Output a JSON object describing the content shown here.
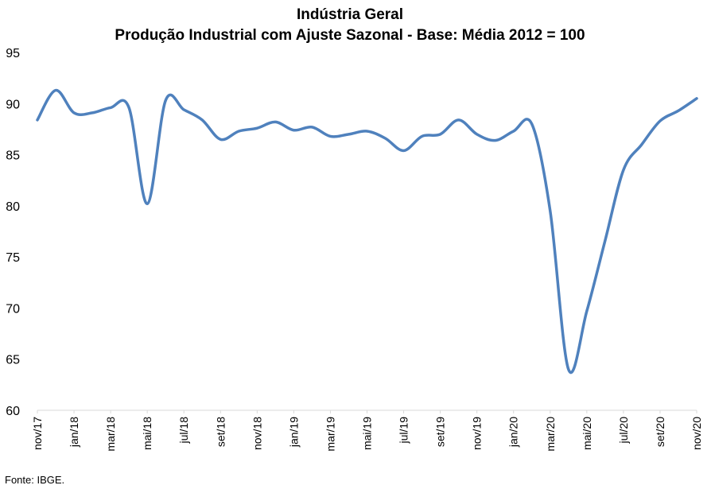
{
  "chart_data": {
    "type": "line",
    "title": "Indústria Geral",
    "subtitle": "Produção Industrial com Ajuste Sazonal - Base: Média 2012 = 100",
    "xlabel": "",
    "ylabel": "",
    "ylim": [
      60,
      95
    ],
    "yticks": [
      60,
      65,
      70,
      75,
      80,
      85,
      90,
      95
    ],
    "grid": false,
    "legend": "none",
    "line_color": "#4f81bd",
    "x": [
      "nov/17",
      "dez/17",
      "jan/18",
      "fev/18",
      "mar/18",
      "abr/18",
      "mai/18",
      "jun/18",
      "jul/18",
      "ago/18",
      "set/18",
      "out/18",
      "nov/18",
      "dez/18",
      "jan/19",
      "fev/19",
      "mar/19",
      "abr/19",
      "mai/19",
      "jun/19",
      "jul/19",
      "ago/19",
      "set/19",
      "out/19",
      "nov/19",
      "dez/19",
      "jan/20",
      "fev/20",
      "mar/20",
      "abr/20",
      "mai/20",
      "jun/20",
      "jul/20",
      "ago/20",
      "set/20",
      "out/20",
      "nov/20"
    ],
    "xtick_labels": [
      "nov/17",
      "jan/18",
      "mar/18",
      "mai/18",
      "jul/18",
      "set/18",
      "nov/18",
      "jan/19",
      "mar/19",
      "mai/19",
      "jul/19",
      "set/19",
      "nov/19",
      "jan/20",
      "mar/20",
      "mai/20",
      "jul/20",
      "set/20",
      "nov/20"
    ],
    "series": [
      {
        "values": [
          88.4,
          91.3,
          89.1,
          89.1,
          89.6,
          89.6,
          80.2,
          90.3,
          89.4,
          88.4,
          86.5,
          87.3,
          87.6,
          88.2,
          87.4,
          87.7,
          86.8,
          87.0,
          87.3,
          86.6,
          85.4,
          86.8,
          87.0,
          88.4,
          87.0,
          86.4,
          87.3,
          88.0,
          79.5,
          64.0,
          69.7,
          76.6,
          83.5,
          86.0,
          88.3,
          89.3,
          90.5
        ]
      }
    ]
  },
  "footer": {
    "source": "Fonte: IBGE."
  }
}
